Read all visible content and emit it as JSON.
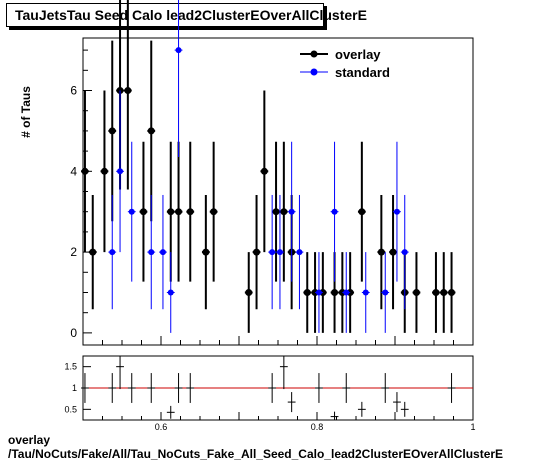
{
  "title": "TauJetsTau Seed Calo lead2ClusterEOverAllClusterE",
  "footer": {
    "line1": "overlay",
    "line2": "/Tau/NoCuts/Fake/All/Tau_NoCuts_Fake_All_Seed_Calo_lead2ClusterEOverAllClusterE"
  },
  "colors": {
    "overlay": "#000000",
    "standard": "#0000ff",
    "ratio_line": "#cc0000"
  },
  "chart_data": [
    {
      "type": "scatter",
      "title": "TauJetsTau Seed Calo lead2ClusterEOverAllClusterE",
      "ylabel": "# of Taus",
      "xlim": [
        0.5,
        1.0
      ],
      "ylim": [
        -0.3,
        7.3
      ],
      "yticks": [
        0,
        2,
        4,
        6
      ],
      "ytick_labels": [
        "0",
        "2",
        "4",
        "6"
      ],
      "legend": {
        "position": "top-right",
        "entries": [
          "overlay",
          "standard"
        ]
      },
      "series": [
        {
          "name": "overlay",
          "x": [
            0.5025,
            0.5125,
            0.5275,
            0.5375,
            0.5475,
            0.5575,
            0.5775,
            0.5875,
            0.6125,
            0.6225,
            0.6375,
            0.6575,
            0.6675,
            0.7125,
            0.7225,
            0.7325,
            0.7475,
            0.7575,
            0.7675,
            0.7875,
            0.7975,
            0.8075,
            0.8225,
            0.8325,
            0.8425,
            0.8575,
            0.8825,
            0.8975,
            0.9125,
            0.9275,
            0.9525,
            0.9625,
            0.9725
          ],
          "y": [
            4,
            2,
            4,
            5,
            6,
            6,
            3,
            5,
            3,
            3,
            3,
            2,
            3,
            1,
            2,
            4,
            3,
            3,
            2,
            1,
            1,
            1,
            1,
            1,
            1,
            3,
            2,
            2,
            1,
            1,
            1,
            1,
            1
          ]
        },
        {
          "name": "standard",
          "x": [
            0.5375,
            0.5475,
            0.5625,
            0.5875,
            0.6025,
            0.6125,
            0.6225,
            0.7425,
            0.7525,
            0.7675,
            0.7775,
            0.8025,
            0.8225,
            0.8375,
            0.8625,
            0.8875,
            0.9025,
            0.9125
          ],
          "y": [
            2,
            4,
            3,
            2,
            2,
            1,
            7,
            2,
            2,
            3,
            2,
            1,
            3,
            1,
            1,
            1,
            3,
            2
          ]
        }
      ]
    },
    {
      "type": "scatter",
      "xlim": [
        0.5,
        1.0
      ],
      "ylim": [
        0.25,
        1.75
      ],
      "yticks": [
        0.5,
        1,
        1.5
      ],
      "ytick_labels": [
        "0.5",
        "1",
        "1.5"
      ],
      "xticks": [
        0.6,
        0.8,
        1.0
      ],
      "xtick_labels": [
        "0.6",
        "0.8",
        "1"
      ],
      "reference_line": 1,
      "x": [
        0.5025,
        0.5375,
        0.5475,
        0.5625,
        0.5875,
        0.6125,
        0.6225,
        0.6375,
        0.7425,
        0.7575,
        0.7675,
        0.8025,
        0.8225,
        0.8375,
        0.8575,
        0.8875,
        0.9025,
        0.9125,
        0.9725
      ],
      "y": [
        1,
        1,
        1.5,
        1,
        1,
        0.43,
        1,
        1,
        1,
        1.5,
        0.67,
        1,
        0.33,
        1,
        0.5,
        1,
        0.67,
        0.5,
        1
      ]
    }
  ]
}
